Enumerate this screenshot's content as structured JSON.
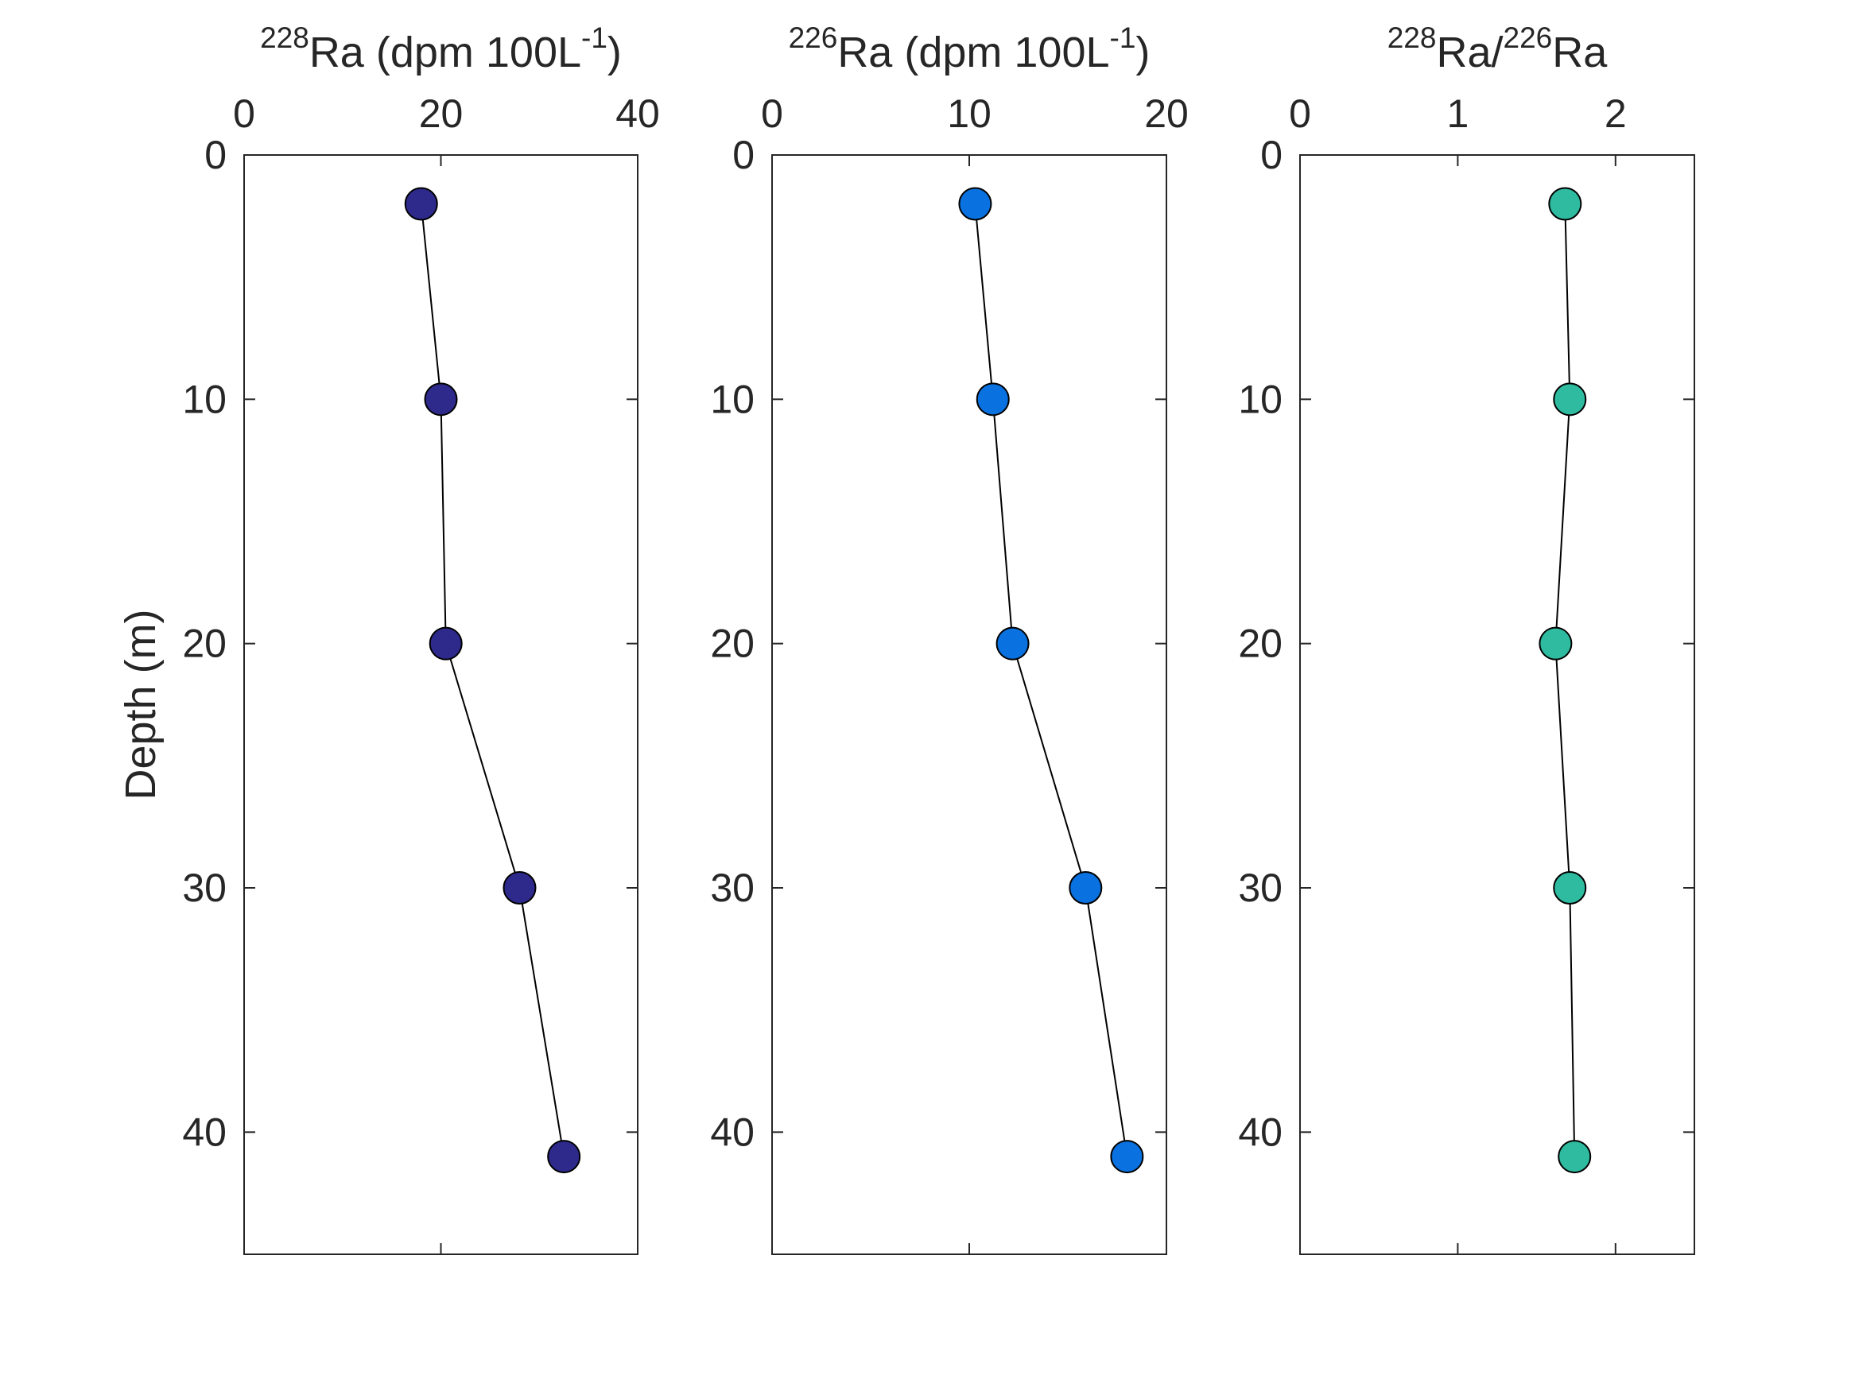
{
  "chart_data": [
    {
      "type": "scatter",
      "title": "",
      "xlabel": {
        "prefix": "",
        "isotope": "228",
        "body": "Ra (dpm 100L",
        "exp": "-1",
        "suffix": ")"
      },
      "ylabel": "Depth (m)",
      "xlim": [
        0,
        40
      ],
      "ylim": [
        0,
        45
      ],
      "y_reversed": true,
      "xticks": [
        0,
        20,
        40
      ],
      "xtick_labels": [
        "0",
        "20",
        "40"
      ],
      "yticks": [
        0,
        10,
        20,
        30,
        40
      ],
      "ytick_labels": [
        "0",
        "10",
        "20",
        "30",
        "40"
      ],
      "grid": false,
      "series": [
        {
          "color": "#2e2a8c",
          "x": [
            18,
            20,
            20.5,
            28,
            32.5
          ],
          "y": [
            2,
            10,
            20,
            30,
            41
          ]
        }
      ]
    },
    {
      "type": "scatter",
      "title": "",
      "xlabel": {
        "prefix": "",
        "isotope": "226",
        "body": "Ra (dpm 100L",
        "exp": "-1",
        "suffix": ")"
      },
      "ylabel": "",
      "xlim": [
        0,
        20
      ],
      "ylim": [
        0,
        45
      ],
      "y_reversed": true,
      "xticks": [
        0,
        10,
        20
      ],
      "xtick_labels": [
        "0",
        "10",
        "20"
      ],
      "yticks": [
        0,
        10,
        20,
        30,
        40
      ],
      "ytick_labels": [
        "0",
        "10",
        "20",
        "30",
        "40"
      ],
      "grid": false,
      "series": [
        {
          "color": "#0a72e0",
          "x": [
            10.3,
            11.2,
            12.2,
            15.9,
            18
          ],
          "y": [
            2,
            10,
            20,
            30,
            41
          ]
        }
      ]
    },
    {
      "type": "scatter",
      "title": "",
      "xlabel": {
        "isotope": "228",
        "body": "Ra/",
        "isotope2": "226",
        "body2": "Ra"
      },
      "ylabel": "",
      "xlim": [
        0,
        2.5
      ],
      "ylim": [
        0,
        45
      ],
      "y_reversed": true,
      "xticks": [
        0,
        1,
        2
      ],
      "xtick_labels": [
        "0",
        "1",
        "2"
      ],
      "yticks": [
        0,
        10,
        20,
        30,
        40
      ],
      "ytick_labels": [
        "0",
        "10",
        "20",
        "30",
        "40"
      ],
      "grid": false,
      "series": [
        {
          "color": "#2fbba0",
          "x": [
            1.68,
            1.71,
            1.62,
            1.71,
            1.74
          ],
          "y": [
            2,
            10,
            20,
            30,
            41
          ]
        }
      ]
    }
  ]
}
